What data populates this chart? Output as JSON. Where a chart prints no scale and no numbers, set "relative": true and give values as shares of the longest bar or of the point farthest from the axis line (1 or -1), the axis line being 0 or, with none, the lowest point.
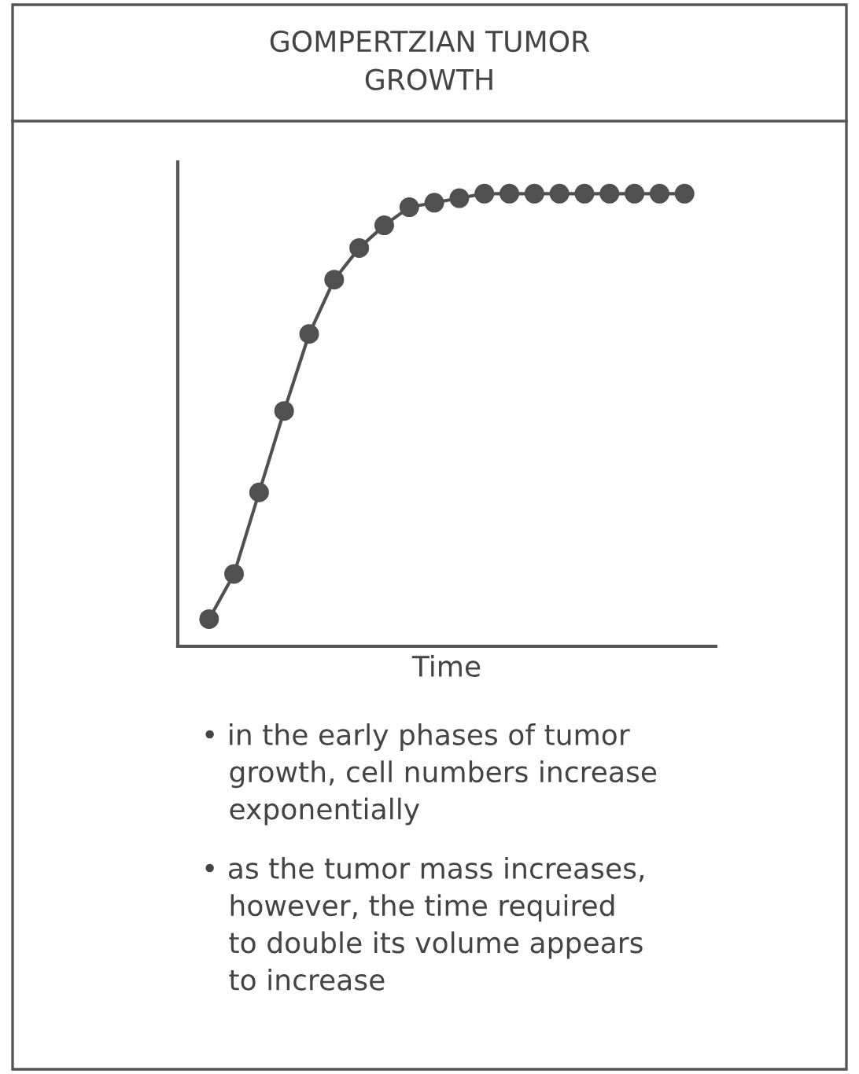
{
  "chart_data": {
    "type": "line",
    "title": "GOMPERTZIAN TUMOR\nGROWTH",
    "xlabel": "Time",
    "relative": true,
    "categories": [
      null,
      null,
      null,
      null,
      null,
      null,
      null,
      null,
      null,
      null,
      null,
      null,
      null,
      null,
      null,
      null,
      null,
      null,
      null,
      null
    ],
    "series": [
      {
        "color": "#505050",
        "values": [
          0.06,
          0.16,
          0.34,
          0.52,
          0.69,
          0.81,
          0.88,
          0.93,
          0.97,
          0.98,
          0.99,
          1.0,
          1.0,
          1.0,
          1.0,
          1.0,
          1.0,
          1.0,
          1.0,
          1.0
        ]
      }
    ],
    "marker": "circle",
    "line_style": "solid",
    "grid": false,
    "legend": false,
    "tick_labels": false,
    "annotations": [
      "• in the early phases of tumor\n   growth, cell numbers increase\n   exponentially",
      "• as the tumor mass increases,\n   however, the time required\n   to double its volume appears\n   to increase"
    ]
  }
}
